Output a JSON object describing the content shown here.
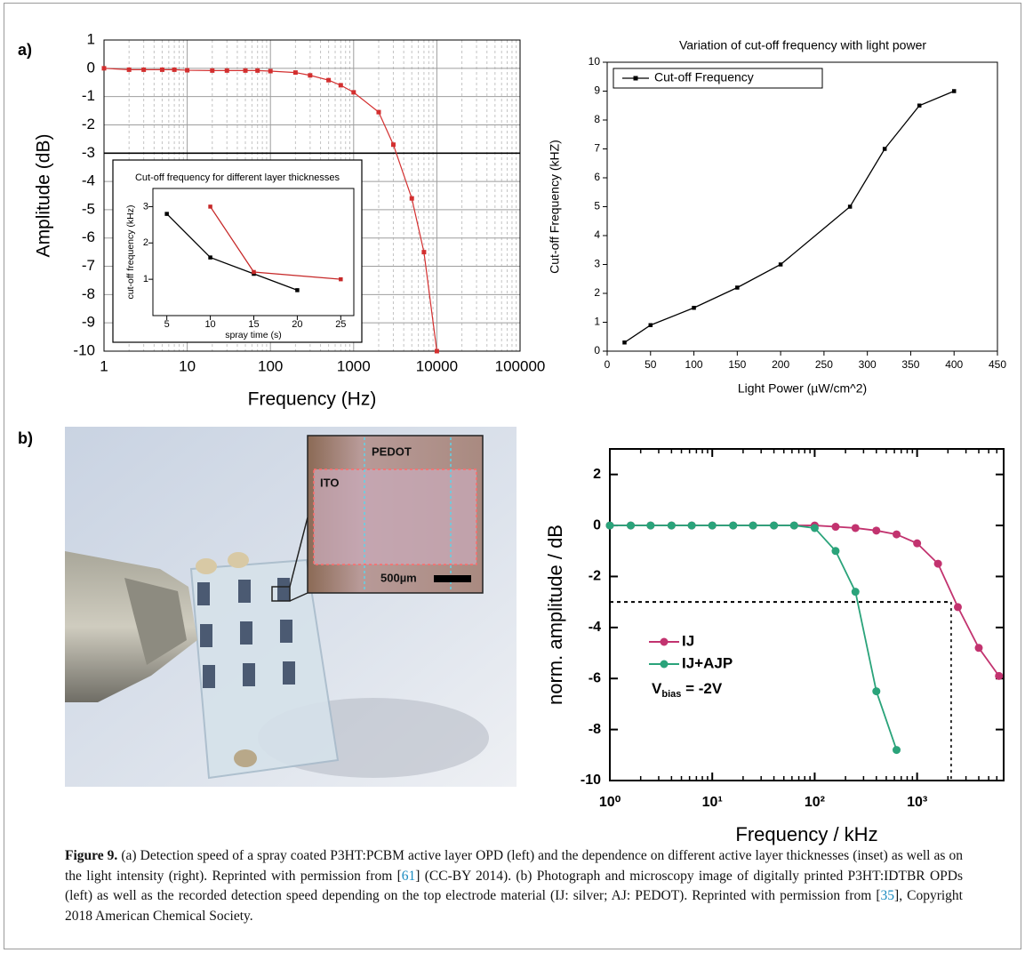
{
  "panel_labels": [
    "a)",
    "b)"
  ],
  "photo": {
    "labels": {
      "top": "PEDOT",
      "left": "ITO",
      "scale": "500µm"
    }
  },
  "caption": {
    "label": "Figure 9.",
    "text_1": " (a) Detection speed of a spray coated P3HT:PCBM active layer OPD (left) and the dependence on different active layer thicknesses (inset) as well as on the light intensity (right). Reprinted with permission from [",
    "ref_1": "61",
    "text_2": "] (CC-BY 2014). (b) Photograph and microscopy image of digitally printed P3HT:IDTBR OPDs (left) as well as the recorded detection speed depending on the top electrode material (IJ: silver; AJ: PEDOT). Reprinted with permission from [",
    "ref_2": "35",
    "text_3": "], Copyright 2018 American Chemical Society."
  },
  "chart_data": [
    {
      "type": "line",
      "x_label": "Frequency (Hz)",
      "y_label": "Amplitude (dB)",
      "log_x": true,
      "xlim": [
        1,
        100000
      ],
      "xticks": [
        1,
        10,
        100,
        1000,
        10000,
        100000
      ],
      "ylim": [
        -10,
        1
      ],
      "yticks": [
        -10,
        -9,
        -8,
        -7,
        -6,
        -5,
        -4,
        -3,
        -2,
        -1,
        0,
        1
      ],
      "grid": true,
      "minor_grid": true,
      "reference_line": -3,
      "series": [
        {
          "color": "#d32f2f",
          "marker": "square",
          "x": [
            1,
            2,
            3,
            5,
            7,
            10,
            20,
            30,
            50,
            70,
            100,
            200,
            300,
            500,
            700,
            1000,
            2000,
            3000,
            5000,
            7000,
            10000
          ],
          "values": [
            0,
            -0.05,
            -0.05,
            -0.05,
            -0.05,
            -0.07,
            -0.08,
            -0.08,
            -0.08,
            -0.08,
            -0.1,
            -0.15,
            -0.25,
            -0.42,
            -0.6,
            -0.85,
            -1.55,
            -2.7,
            -4.6,
            -6.5,
            -10
          ]
        }
      ]
    },
    {
      "type": "line",
      "title": "Cut-off frequency for different layer thicknesses",
      "x_label": "spray time (s)",
      "y_label": "cut-off frequency (kHz)",
      "xlim": [
        3.4,
        26.5
      ],
      "xticks": [
        5,
        10,
        15,
        20,
        25
      ],
      "ylim": [
        0,
        3.5
      ],
      "yticks": [
        1,
        2,
        3
      ],
      "series": [
        {
          "color": "#000000",
          "marker": "square",
          "x": [
            5,
            10,
            15,
            20
          ],
          "values": [
            2.8,
            1.6,
            1.15,
            0.7
          ]
        },
        {
          "color": "#c62828",
          "marker": "square",
          "x": [
            10,
            15,
            25
          ],
          "values": [
            3,
            1.2,
            1
          ]
        }
      ]
    },
    {
      "type": "line",
      "title": "Variation of cut-off frequency with light power",
      "x_label": "Light Power (µW/cm^2)",
      "y_label": "Cut-off Frequency (kHZ)",
      "xlim": [
        0,
        450
      ],
      "xticks": [
        0,
        50,
        100,
        150,
        200,
        250,
        300,
        350,
        400,
        450
      ],
      "ylim": [
        0,
        10
      ],
      "yticks": [
        0,
        1,
        2,
        3,
        4,
        5,
        6,
        7,
        8,
        9,
        10
      ],
      "legend": "top-left",
      "series": [
        {
          "name": "Cut-off Frequency",
          "color": "#000000",
          "marker": "square",
          "x": [
            20,
            50,
            100,
            150,
            200,
            280,
            320,
            360,
            400
          ],
          "values": [
            0.3,
            0.9,
            1.5,
            2.2,
            3,
            5,
            7,
            8.5,
            9
          ]
        }
      ]
    },
    {
      "type": "line",
      "x_label": "Frequency / kHz",
      "y_label": "norm. amplitude / dB",
      "log_x": true,
      "xlim": [
        1,
        7000
      ],
      "xticks": [
        {
          "value": 1,
          "label": "10⁰"
        },
        {
          "value": 10,
          "label": "10¹"
        },
        {
          "value": 100,
          "label": "10²"
        },
        {
          "value": 1000,
          "label": "10³"
        }
      ],
      "ylim": [
        -10,
        3
      ],
      "yticks": [
        -10,
        -8,
        -6,
        -4,
        -2,
        0,
        2
      ],
      "legend": "lower-left",
      "reference_line": -3,
      "reference_x": 2150,
      "x": [
        1,
        1.6,
        2.5,
        4,
        6.3,
        10,
        16,
        25,
        40,
        63,
        100,
        160,
        250,
        400,
        630,
        1000,
        1600,
        2500,
        4000,
        6300
      ],
      "series": [
        {
          "name": "IJ",
          "color": "#c2336f",
          "marker": "circle",
          "values": [
            0,
            0,
            0,
            0,
            0,
            0,
            0,
            0,
            0,
            0,
            0,
            -0.05,
            -0.1,
            -0.2,
            -0.35,
            -0.7,
            -1.5,
            -3.2,
            -4.8,
            -5.9
          ]
        },
        {
          "name": "IJ+AJP",
          "color": "#2aa37a",
          "marker": "circle",
          "values": [
            0,
            0,
            0,
            0,
            0,
            0,
            0,
            0,
            0,
            0,
            -0.1,
            -1,
            -2.6,
            -6.5,
            -8.8,
            null,
            null,
            null,
            null,
            null
          ]
        }
      ],
      "annotation": {
        "main": "V",
        "sub": "bias",
        "rest": " = -2V"
      }
    }
  ]
}
